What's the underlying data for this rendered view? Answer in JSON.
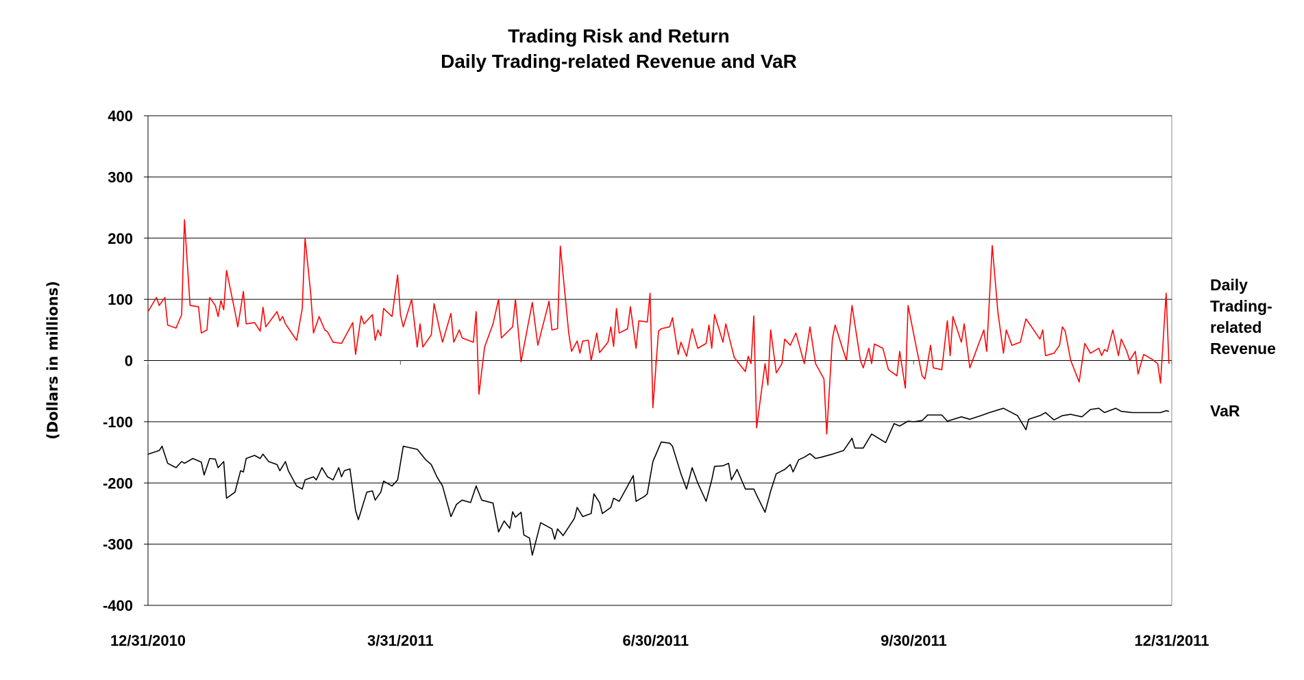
{
  "chart_data": {
    "type": "line",
    "title": "Trading Risk and Return",
    "subtitle": "Daily Trading-related Revenue and VaR",
    "xlabel": "",
    "ylabel": "(Dollars in millions)",
    "ylim": [
      -400,
      400
    ],
    "yticks": [
      400,
      300,
      200,
      100,
      0,
      -100,
      -200,
      -300,
      -400
    ],
    "xlim": [
      0,
      365
    ],
    "x_unit": "days since 12/31/2010",
    "xticks": [
      {
        "x": 0,
        "label": "12/31/2010"
      },
      {
        "x": 90,
        "label": "3/31/2011"
      },
      {
        "x": 181,
        "label": "6/30/2011"
      },
      {
        "x": 273,
        "label": "9/30/2011"
      },
      {
        "x": 365,
        "label": "12/31/2011"
      }
    ],
    "grid": true,
    "legend_placement": "right",
    "series": [
      {
        "name": "Daily Trading-related Revenue",
        "legend_lines": [
          "Daily",
          "Trading-",
          "related",
          "Revenue"
        ],
        "color": "#ff0000",
        "x": [
          0,
          3,
          4,
          6,
          7,
          10,
          12,
          13,
          15,
          18,
          19,
          21,
          22,
          24,
          25,
          26,
          27,
          28,
          31,
          32,
          34,
          35,
          38,
          40,
          41,
          42,
          46,
          47,
          48,
          49,
          53,
          55,
          56,
          58,
          59,
          61,
          63,
          64,
          66,
          69,
          71,
          73,
          74,
          76,
          77,
          80,
          81,
          82,
          83,
          84,
          87,
          89,
          90,
          91,
          94,
          96,
          97,
          98,
          101,
          102,
          104,
          105,
          108,
          109,
          111,
          112,
          116,
          117,
          118,
          120,
          123,
          125,
          126,
          130,
          131,
          133,
          137,
          139,
          143,
          144,
          146,
          147,
          150,
          151,
          153,
          154,
          155,
          157,
          158,
          160,
          161,
          164,
          165,
          166,
          167,
          168,
          171,
          172,
          174,
          175,
          178,
          179,
          180,
          182,
          183,
          186,
          187,
          189,
          190,
          192,
          194,
          196,
          199,
          200,
          201,
          202,
          205,
          206,
          209,
          213,
          214,
          215,
          216,
          217,
          220,
          221,
          222,
          224,
          226,
          227,
          229,
          231,
          234,
          236,
          238,
          241,
          242,
          244,
          245,
          249,
          251,
          254,
          255,
          257,
          258,
          259,
          262,
          264,
          267,
          268,
          270,
          271,
          274,
          276,
          277,
          279,
          280,
          283,
          285,
          286,
          287,
          290,
          291,
          293,
          298,
          299,
          301,
          303,
          305,
          306,
          308,
          311,
          313,
          314,
          318,
          319,
          320,
          323,
          325,
          326,
          327,
          329,
          332,
          334,
          336,
          339,
          340,
          341,
          342,
          344,
          346,
          347,
          349,
          350,
          352,
          353,
          354,
          355,
          358,
          360,
          361,
          363,
          364
        ],
        "y": [
          80,
          103,
          90,
          103,
          58,
          53,
          75,
          230,
          90,
          88,
          45,
          50,
          103,
          90,
          72,
          98,
          83,
          147,
          80,
          55,
          113,
          60,
          62,
          48,
          87,
          55,
          80,
          65,
          72,
          60,
          33,
          85,
          200,
          110,
          45,
          72,
          50,
          47,
          30,
          28,
          45,
          62,
          10,
          73,
          60,
          75,
          33,
          50,
          40,
          85,
          72,
          140,
          75,
          55,
          100,
          22,
          60,
          22,
          42,
          93,
          50,
          30,
          77,
          30,
          50,
          37,
          30,
          80,
          -55,
          22,
          60,
          100,
          37,
          55,
          100,
          -2,
          95,
          25,
          97,
          50,
          52,
          187,
          45,
          15,
          32,
          12,
          32,
          33,
          0,
          45,
          13,
          30,
          55,
          23,
          85,
          45,
          52,
          88,
          20,
          65,
          63,
          110,
          -77,
          48,
          52,
          55,
          70,
          10,
          30,
          7,
          52,
          20,
          28,
          58,
          20,
          75,
          30,
          60,
          5,
          -18,
          7,
          -5,
          73,
          -110,
          -5,
          -40,
          50,
          -20,
          -5,
          35,
          25,
          45,
          -5,
          55,
          -5,
          -30,
          -120,
          35,
          58,
          0,
          90,
          0,
          -12,
          20,
          -5,
          27,
          20,
          -15,
          -25,
          15,
          -45,
          90,
          20,
          -25,
          -30,
          25,
          -12,
          -15,
          65,
          8,
          72,
          30,
          60,
          -12,
          50,
          15,
          188,
          80,
          12,
          50,
          25,
          30,
          68,
          62,
          35,
          50,
          8,
          12,
          25,
          55,
          48,
          0,
          -35,
          28,
          12,
          20,
          8,
          18,
          15,
          50,
          8,
          35,
          15,
          0,
          15,
          -22,
          -5,
          10,
          2,
          -5,
          -37,
          110,
          -5
        ]
      },
      {
        "name": "VaR",
        "legend_lines": [
          "VaR"
        ],
        "color": "#000000",
        "x": [
          0,
          4,
          5,
          7,
          10,
          12,
          13,
          16,
          19,
          20,
          22,
          24,
          25,
          27,
          28,
          31,
          33,
          34,
          35,
          38,
          40,
          41,
          43,
          46,
          47,
          49,
          50,
          53,
          55,
          56,
          59,
          60,
          62,
          64,
          66,
          68,
          69,
          70,
          72,
          74,
          75,
          78,
          80,
          81,
          83,
          84,
          87,
          89,
          91,
          96,
          99,
          101,
          103,
          105,
          108,
          110,
          112,
          115,
          117,
          119,
          123,
          125,
          127,
          129,
          130,
          131,
          133,
          134,
          136,
          137,
          139,
          140,
          144,
          145,
          146,
          148,
          152,
          153,
          155,
          158,
          159,
          161,
          162,
          165,
          166,
          168,
          171,
          173,
          174,
          177,
          178,
          180,
          183,
          186,
          187,
          190,
          192,
          194,
          196,
          199,
          201,
          202,
          205,
          207,
          208,
          210,
          213,
          216,
          217,
          220,
          222,
          224,
          227,
          229,
          230,
          232,
          234,
          236,
          238,
          240,
          244,
          248,
          251,
          252,
          255,
          258,
          263,
          266,
          268,
          271,
          273,
          276,
          278,
          283,
          285,
          290,
          293,
          297,
          300,
          305,
          310,
          313,
          314,
          318,
          320,
          323,
          326,
          329,
          333,
          336,
          339,
          341,
          345,
          347,
          351,
          355,
          361,
          363,
          364
        ],
        "y": [
          -153,
          -147,
          -140,
          -168,
          -175,
          -165,
          -168,
          -160,
          -166,
          -187,
          -160,
          -161,
          -175,
          -165,
          -225,
          -215,
          -180,
          -182,
          -160,
          -155,
          -160,
          -153,
          -165,
          -170,
          -180,
          -165,
          -180,
          -205,
          -210,
          -195,
          -190,
          -195,
          -175,
          -190,
          -195,
          -175,
          -190,
          -180,
          -177,
          -245,
          -260,
          -215,
          -213,
          -228,
          -215,
          -197,
          -205,
          -195,
          -140,
          -145,
          -162,
          -170,
          -190,
          -205,
          -255,
          -235,
          -228,
          -232,
          -205,
          -228,
          -233,
          -280,
          -262,
          -274,
          -247,
          -256,
          -248,
          -285,
          -290,
          -318,
          -283,
          -265,
          -275,
          -292,
          -275,
          -286,
          -258,
          -240,
          -255,
          -250,
          -218,
          -232,
          -250,
          -240,
          -225,
          -230,
          -205,
          -188,
          -230,
          -222,
          -218,
          -165,
          -133,
          -135,
          -140,
          -185,
          -210,
          -175,
          -200,
          -230,
          -195,
          -173,
          -172,
          -168,
          -195,
          -178,
          -210,
          -210,
          -220,
          -248,
          -213,
          -185,
          -178,
          -170,
          -182,
          -162,
          -158,
          -152,
          -160,
          -158,
          -153,
          -147,
          -127,
          -143,
          -143,
          -120,
          -134,
          -103,
          -107,
          -99,
          -100,
          -98,
          -89,
          -89,
          -99,
          -92,
          -96,
          -90,
          -85,
          -78,
          -90,
          -113,
          -96,
          -90,
          -85,
          -97,
          -90,
          -88,
          -92,
          -80,
          -78,
          -85,
          -78,
          -83,
          -85,
          -85,
          -85,
          -82,
          -83
        ]
      }
    ]
  }
}
